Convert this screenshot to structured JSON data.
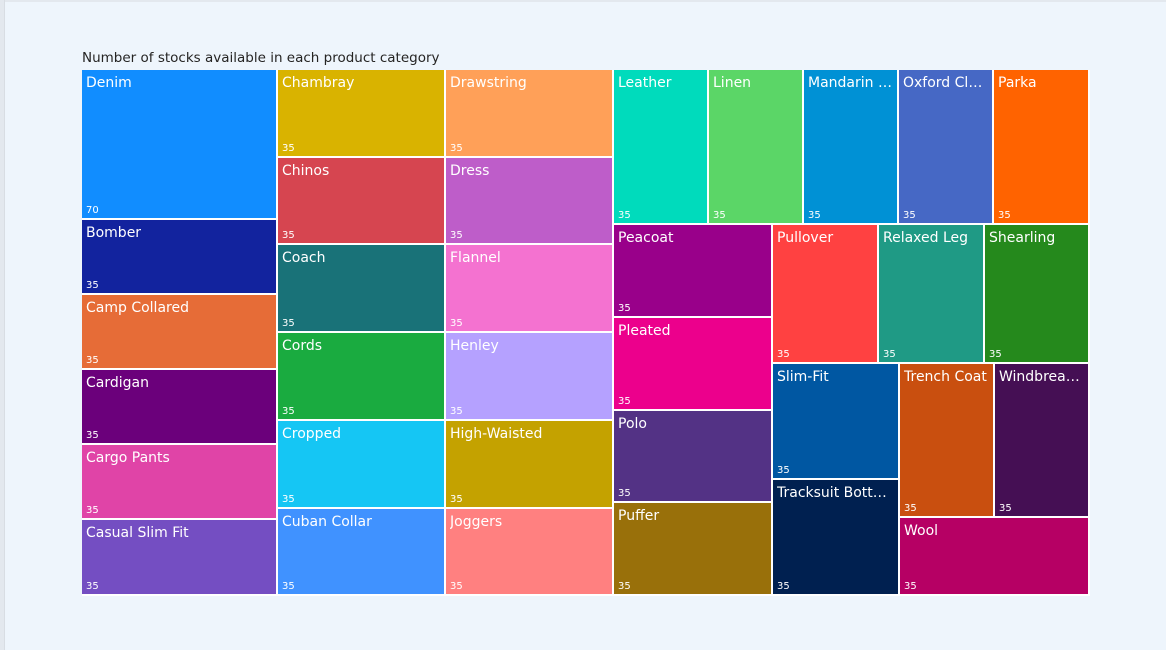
{
  "chart_data": {
    "type": "treemap",
    "title": "Number of stocks available in each product category",
    "items": [
      {
        "label": "Denim",
        "value": 70,
        "color": "#118dff"
      },
      {
        "label": "Bomber",
        "value": 35,
        "color": "#12239e"
      },
      {
        "label": "Camp Collared",
        "value": 35,
        "color": "#e66c37"
      },
      {
        "label": "Cardigan",
        "value": 35,
        "color": "#6b007b"
      },
      {
        "label": "Cargo Pants",
        "value": 35,
        "color": "#e044a7"
      },
      {
        "label": "Casual Slim Fit",
        "value": 35,
        "color": "#744ec2"
      },
      {
        "label": "Chambray",
        "value": 35,
        "color": "#d9b300"
      },
      {
        "label": "Chinos",
        "value": 35,
        "color": "#d64550"
      },
      {
        "label": "Coach",
        "value": 35,
        "color": "#197278"
      },
      {
        "label": "Cords",
        "value": 35,
        "color": "#1aab40"
      },
      {
        "label": "Cropped",
        "value": 35,
        "color": "#15c6f4"
      },
      {
        "label": "Cuban Collar",
        "value": 35,
        "color": "#4092ff"
      },
      {
        "label": "Drawstring",
        "value": 35,
        "color": "#ffa058"
      },
      {
        "label": "Dress",
        "value": 35,
        "color": "#be5dc9"
      },
      {
        "label": "Flannel",
        "value": 35,
        "color": "#f472d0"
      },
      {
        "label": "Henley",
        "value": 35,
        "color": "#b5a1ff"
      },
      {
        "label": "High-Waisted",
        "value": 35,
        "color": "#c4a200"
      },
      {
        "label": "Joggers",
        "value": 35,
        "color": "#ff8080"
      },
      {
        "label": "Leather",
        "value": 35,
        "color": "#00dbbc"
      },
      {
        "label": "Linen",
        "value": 35,
        "color": "#5bd667"
      },
      {
        "label": "Mandarin C...",
        "value": 35,
        "color": "#0091d5"
      },
      {
        "label": "Oxford Cloth",
        "value": 35,
        "color": "#4668c5"
      },
      {
        "label": "Parka",
        "value": 35,
        "color": "#ff6300"
      },
      {
        "label": "Peacoat",
        "value": 35,
        "color": "#99008a"
      },
      {
        "label": "Pleated",
        "value": 35,
        "color": "#ec008c"
      },
      {
        "label": "Polo",
        "value": 35,
        "color": "#533285"
      },
      {
        "label": "Puffer",
        "value": 35,
        "color": "#99700a"
      },
      {
        "label": "Pullover",
        "value": 35,
        "color": "#ff4141"
      },
      {
        "label": "Relaxed Leg",
        "value": 35,
        "color": "#1f9a85"
      },
      {
        "label": "Shearling",
        "value": 35,
        "color": "#25891c"
      },
      {
        "label": "Slim-Fit",
        "value": 35,
        "color": "#0057a2"
      },
      {
        "label": "Tracksuit Bottoms",
        "value": 35,
        "color": "#002050"
      },
      {
        "label": "Trench Coat",
        "value": 35,
        "color": "#c94f0f"
      },
      {
        "label": "Windbreaker",
        "value": 35,
        "color": "#450f54"
      },
      {
        "label": "Wool",
        "value": 35,
        "color": "#b60064"
      }
    ]
  }
}
